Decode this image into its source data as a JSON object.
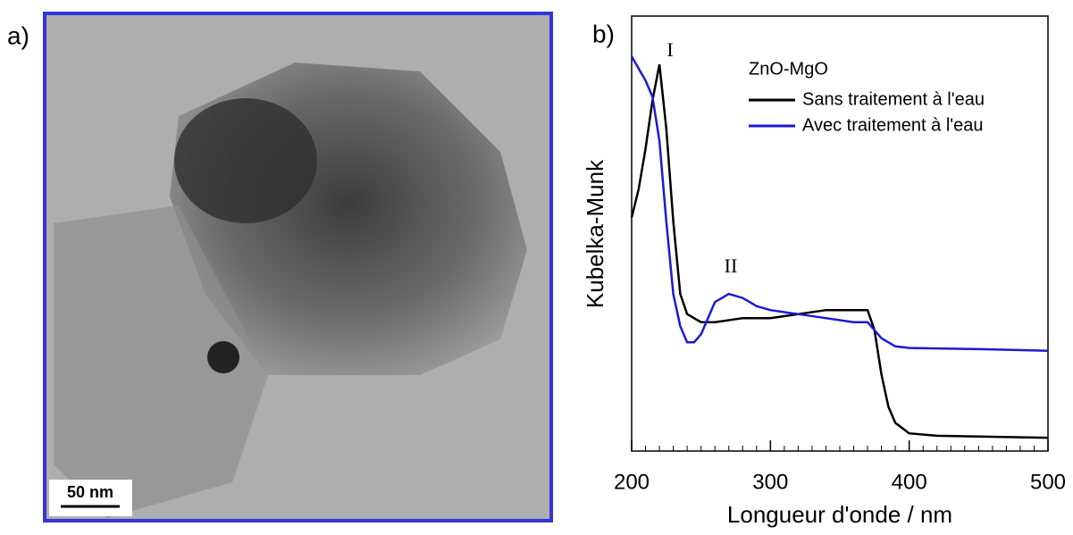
{
  "image_panel": {
    "label": "a)",
    "scale_bar": "50 nm"
  },
  "chart_data": {
    "type": "line",
    "panel_label": "b)",
    "xlabel": "Longueur d'onde / nm",
    "ylabel": "Kubelka-Munk",
    "legend_title": "ZnO-MgO",
    "legend": "upper right",
    "annotations": [
      "I",
      "II"
    ],
    "xlim": [
      200,
      500
    ],
    "xticks": [
      200,
      300,
      400,
      500
    ],
    "xminor_ticks": [
      210,
      220,
      230,
      240,
      250,
      260,
      270,
      280,
      290,
      310,
      320,
      330,
      340,
      350,
      360,
      370,
      380,
      390,
      410,
      420,
      430,
      440,
      450,
      460,
      470,
      480,
      490
    ],
    "ylim": [
      0,
      1.08
    ],
    "series": [
      {
        "name": "Sans traitement à l'eau",
        "color": "#000000",
        "x": [
          200,
          205,
          210,
          215,
          220,
          225,
          230,
          235,
          240,
          250,
          260,
          280,
          300,
          320,
          340,
          360,
          370,
          375,
          380,
          385,
          390,
          400,
          420,
          450,
          500
        ],
        "values": [
          0.58,
          0.65,
          0.75,
          0.87,
          0.96,
          0.8,
          0.57,
          0.39,
          0.34,
          0.32,
          0.32,
          0.33,
          0.33,
          0.34,
          0.35,
          0.35,
          0.35,
          0.3,
          0.19,
          0.11,
          0.07,
          0.044,
          0.038,
          0.036,
          0.033
        ]
      },
      {
        "name": "Avec traitement à l'eau",
        "color": "#1a1ad6",
        "x": [
          200,
          210,
          215,
          220,
          225,
          230,
          235,
          240,
          245,
          250,
          260,
          270,
          280,
          290,
          300,
          320,
          340,
          360,
          370,
          380,
          390,
          400,
          450,
          500
        ],
        "values": [
          0.98,
          0.92,
          0.88,
          0.77,
          0.57,
          0.39,
          0.31,
          0.27,
          0.27,
          0.29,
          0.37,
          0.39,
          0.38,
          0.36,
          0.35,
          0.34,
          0.33,
          0.32,
          0.32,
          0.28,
          0.26,
          0.256,
          0.253,
          0.249
        ]
      }
    ]
  }
}
